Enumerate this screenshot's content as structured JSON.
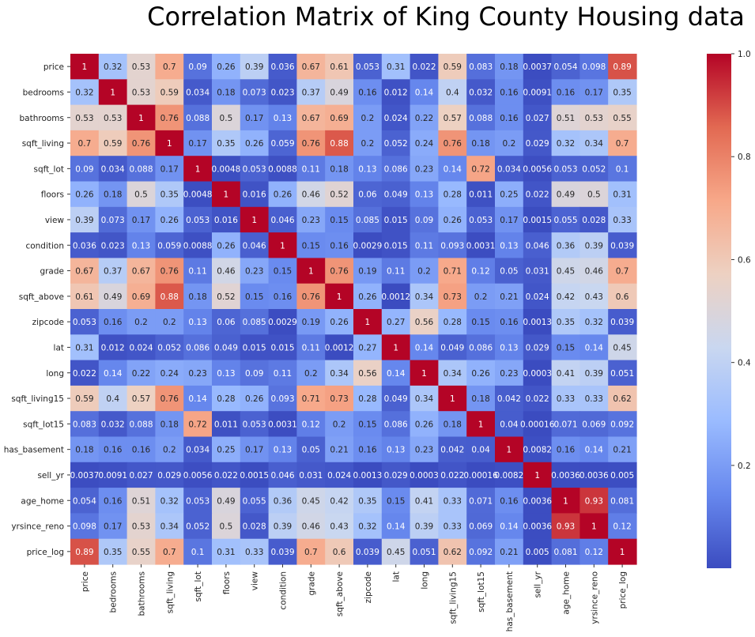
{
  "chart_data": {
    "type": "heatmap",
    "title": "Correlation Matrix of King County Housing data",
    "colormap": "coolwarm",
    "colormap_stops": [
      "#3b4cc0",
      "#6788ee",
      "#9abbff",
      "#c9d7f0",
      "#edd1c2",
      "#f7a889",
      "#e26952",
      "#b40426"
    ],
    "labels": [
      "price",
      "bedrooms",
      "bathrooms",
      "sqft_living",
      "sqft_lot",
      "floors",
      "view",
      "condition",
      "grade",
      "sqft_above",
      "zipcode",
      "lat",
      "long",
      "sqft_living15",
      "sqft_lot15",
      "has_basement",
      "sell_yr",
      "age_home",
      "yrsince_reno",
      "price_log"
    ],
    "values": [
      [
        "1",
        "0.32",
        "0.53",
        "0.7",
        "0.09",
        "0.26",
        "0.39",
        "0.036",
        "0.67",
        "0.61",
        "0.053",
        "0.31",
        "0.022",
        "0.59",
        "0.083",
        "0.18",
        "0.0037",
        "0.054",
        "0.098",
        "0.89"
      ],
      [
        "0.32",
        "1",
        "0.53",
        "0.59",
        "0.034",
        "0.18",
        "0.073",
        "0.023",
        "0.37",
        "0.49",
        "0.16",
        "0.012",
        "0.14",
        "0.4",
        "0.032",
        "0.16",
        "0.0091",
        "0.16",
        "0.17",
        "0.35"
      ],
      [
        "0.53",
        "0.53",
        "1",
        "0.76",
        "0.088",
        "0.5",
        "0.17",
        "0.13",
        "0.67",
        "0.69",
        "0.2",
        "0.024",
        "0.22",
        "0.57",
        "0.088",
        "0.16",
        "0.027",
        "0.51",
        "0.53",
        "0.55"
      ],
      [
        "0.7",
        "0.59",
        "0.76",
        "1",
        "0.17",
        "0.35",
        "0.26",
        "0.059",
        "0.76",
        "0.88",
        "0.2",
        "0.052",
        "0.24",
        "0.76",
        "0.18",
        "0.2",
        "0.029",
        "0.32",
        "0.34",
        "0.7"
      ],
      [
        "0.09",
        "0.034",
        "0.088",
        "0.17",
        "1",
        "0.0048",
        "0.053",
        "0.0088",
        "0.11",
        "0.18",
        "0.13",
        "0.086",
        "0.23",
        "0.14",
        "0.72",
        "0.034",
        "0.0056",
        "0.053",
        "0.052",
        "0.1"
      ],
      [
        "0.26",
        "0.18",
        "0.5",
        "0.35",
        "0.0048",
        "1",
        "0.016",
        "0.26",
        "0.46",
        "0.52",
        "0.06",
        "0.049",
        "0.13",
        "0.28",
        "0.011",
        "0.25",
        "0.022",
        "0.49",
        "0.5",
        "0.31"
      ],
      [
        "0.39",
        "0.073",
        "0.17",
        "0.26",
        "0.053",
        "0.016",
        "1",
        "0.046",
        "0.23",
        "0.15",
        "0.085",
        "0.015",
        "0.09",
        "0.26",
        "0.053",
        "0.17",
        "0.0015",
        "0.055",
        "0.028",
        "0.33"
      ],
      [
        "0.036",
        "0.023",
        "0.13",
        "0.059",
        "0.0088",
        "0.26",
        "0.046",
        "1",
        "0.15",
        "0.16",
        "0.0029",
        "0.015",
        "0.11",
        "0.093",
        "0.0031",
        "0.13",
        "0.046",
        "0.36",
        "0.39",
        "0.039"
      ],
      [
        "0.67",
        "0.37",
        "0.67",
        "0.76",
        "0.11",
        "0.46",
        "0.23",
        "0.15",
        "1",
        "0.76",
        "0.19",
        "0.11",
        "0.2",
        "0.71",
        "0.12",
        "0.05",
        "0.031",
        "0.45",
        "0.46",
        "0.7"
      ],
      [
        "0.61",
        "0.49",
        "0.69",
        "0.88",
        "0.18",
        "0.52",
        "0.15",
        "0.16",
        "0.76",
        "1",
        "0.26",
        "0.0012",
        "0.34",
        "0.73",
        "0.2",
        "0.21",
        "0.024",
        "0.42",
        "0.43",
        "0.6"
      ],
      [
        "0.053",
        "0.16",
        "0.2",
        "0.2",
        "0.13",
        "0.06",
        "0.085",
        "0.0029",
        "0.19",
        "0.26",
        "1",
        "0.27",
        "0.56",
        "0.28",
        "0.15",
        "0.16",
        "0.0013",
        "0.35",
        "0.32",
        "0.039"
      ],
      [
        "0.31",
        "0.012",
        "0.024",
        "0.052",
        "0.086",
        "0.049",
        "0.015",
        "0.015",
        "0.11",
        "0.0012",
        "0.27",
        "1",
        "0.14",
        "0.049",
        "0.086",
        "0.13",
        "0.029",
        "0.15",
        "0.14",
        "0.45"
      ],
      [
        "0.022",
        "0.14",
        "0.22",
        "0.24",
        "0.23",
        "0.13",
        "0.09",
        "0.11",
        "0.2",
        "0.34",
        "0.56",
        "0.14",
        "1",
        "0.34",
        "0.26",
        "0.23",
        "0.0003",
        "0.41",
        "0.39",
        "0.051"
      ],
      [
        "0.59",
        "0.4",
        "0.57",
        "0.76",
        "0.14",
        "0.28",
        "0.26",
        "0.093",
        "0.71",
        "0.73",
        "0.28",
        "0.049",
        "0.34",
        "1",
        "0.18",
        "0.042",
        "0.022",
        "0.33",
        "0.33",
        "0.62"
      ],
      [
        "0.083",
        "0.032",
        "0.088",
        "0.18",
        "0.72",
        "0.011",
        "0.053",
        "0.0031",
        "0.12",
        "0.2",
        "0.15",
        "0.086",
        "0.26",
        "0.18",
        "1",
        "0.04",
        "0.00016",
        "0.071",
        "0.069",
        "0.092"
      ],
      [
        "0.18",
        "0.16",
        "0.16",
        "0.2",
        "0.034",
        "0.25",
        "0.17",
        "0.13",
        "0.05",
        "0.21",
        "0.16",
        "0.13",
        "0.23",
        "0.042",
        "0.04",
        "1",
        "0.0082",
        "0.16",
        "0.14",
        "0.21"
      ],
      [
        "0.0037",
        "0.0091",
        "0.027",
        "0.029",
        "0.0056",
        "0.022",
        "0.0015",
        "0.046",
        "0.031",
        "0.024",
        "0.0013",
        "0.029",
        "0.0003",
        "0.022",
        "0.00016",
        "0.0082",
        "1",
        "0.0036",
        "0.0036",
        "0.005"
      ],
      [
        "0.054",
        "0.16",
        "0.51",
        "0.32",
        "0.053",
        "0.49",
        "0.055",
        "0.36",
        "0.45",
        "0.42",
        "0.35",
        "0.15",
        "0.41",
        "0.33",
        "0.071",
        "0.16",
        "0.0036",
        "1",
        "0.93",
        "0.081"
      ],
      [
        "0.098",
        "0.17",
        "0.53",
        "0.34",
        "0.052",
        "0.5",
        "0.028",
        "0.39",
        "0.46",
        "0.43",
        "0.32",
        "0.14",
        "0.39",
        "0.33",
        "0.069",
        "0.14",
        "0.0036",
        "0.93",
        "1",
        "0.12"
      ],
      [
        "0.89",
        "0.35",
        "0.55",
        "0.7",
        "0.1",
        "0.31",
        "0.33",
        "0.039",
        "0.7",
        "0.6",
        "0.039",
        "0.45",
        "0.051",
        "0.62",
        "0.092",
        "0.21",
        "0.005",
        "0.081",
        "0.12",
        "1"
      ]
    ],
    "colorbar": {
      "min": 0.00016,
      "max": 1,
      "ticks": [
        "0.2",
        "0.4",
        "0.6",
        "0.8",
        "1.0"
      ]
    }
  }
}
